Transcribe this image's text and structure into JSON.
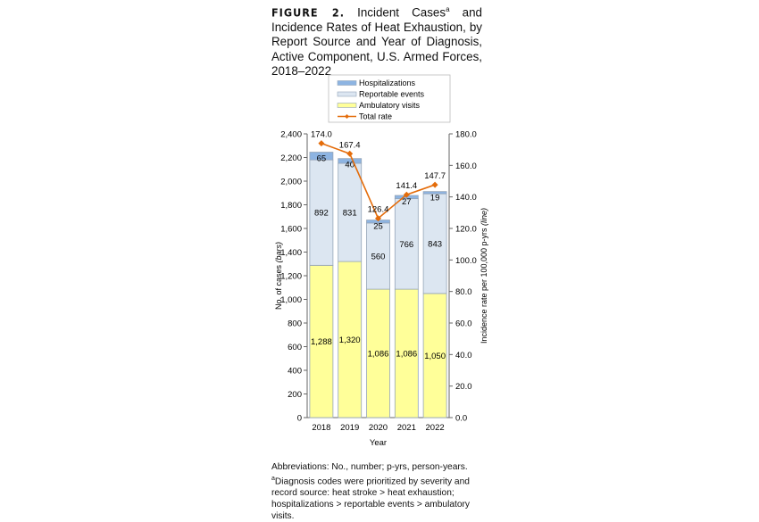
{
  "title": {
    "label": "FIGURE 2.",
    "text": "Incident Cases",
    "sup": "a",
    "rest": " and Incidence Rates of Heat Exhaustion, by Report Source and Year of Diagnosis, Active Component, U.S. Armed Forces, 2018–2022"
  },
  "notes": [
    "Abbreviations: No., number; p-yrs, person-years.",
    "aDiagnosis codes were prioritized by severity and record source: heat stroke > heat exhaustion; hospitalizations > reportable events > ambulatory visits."
  ],
  "chart_data": {
    "type": "bar",
    "stacked": true,
    "categories": [
      "2018",
      "2019",
      "2020",
      "2021",
      "2022"
    ],
    "xlabel": "Year",
    "ylabel": "No. of cases (bars)",
    "y2label": "Incidence rate per 100,000 p-yrs (line)",
    "ylim": [
      0,
      2400
    ],
    "y2lim": [
      0,
      180
    ],
    "yticks": [
      "0",
      "200",
      "400",
      "600",
      "800",
      "1,000",
      "1,200",
      "1,400",
      "1,600",
      "1,800",
      "2,000",
      "2,200",
      "2,400"
    ],
    "y2ticks": [
      "0.0",
      "20.0",
      "40.0",
      "60.0",
      "80.0",
      "100.0",
      "120.0",
      "140.0",
      "160.0",
      "180.0"
    ],
    "legend_position": "top",
    "series": [
      {
        "name": "Ambulatory visits",
        "color": "#ffff99",
        "values": [
          1288,
          1320,
          1086,
          1086,
          1050
        ],
        "labels": [
          "1,288",
          "1,320",
          "1,086",
          "1,086",
          "1,050"
        ]
      },
      {
        "name": "Reportable events",
        "color": "#dce6f1",
        "values": [
          892,
          831,
          560,
          766,
          843
        ],
        "labels": [
          "892",
          "831",
          "560",
          "766",
          "843"
        ]
      },
      {
        "name": "Hospitalizations",
        "color": "#8db4e2",
        "values": [
          65,
          40,
          25,
          27,
          19
        ],
        "labels": [
          "65",
          "40",
          "25",
          "27",
          "19"
        ]
      },
      {
        "name": "Total rate",
        "type": "line",
        "axis": "right",
        "color": "#e46c0a",
        "values": [
          174.0,
          167.4,
          126.4,
          141.4,
          147.7
        ],
        "labels": [
          "174.0",
          "167.4",
          "126.4",
          "141.4",
          "147.7"
        ]
      }
    ]
  }
}
